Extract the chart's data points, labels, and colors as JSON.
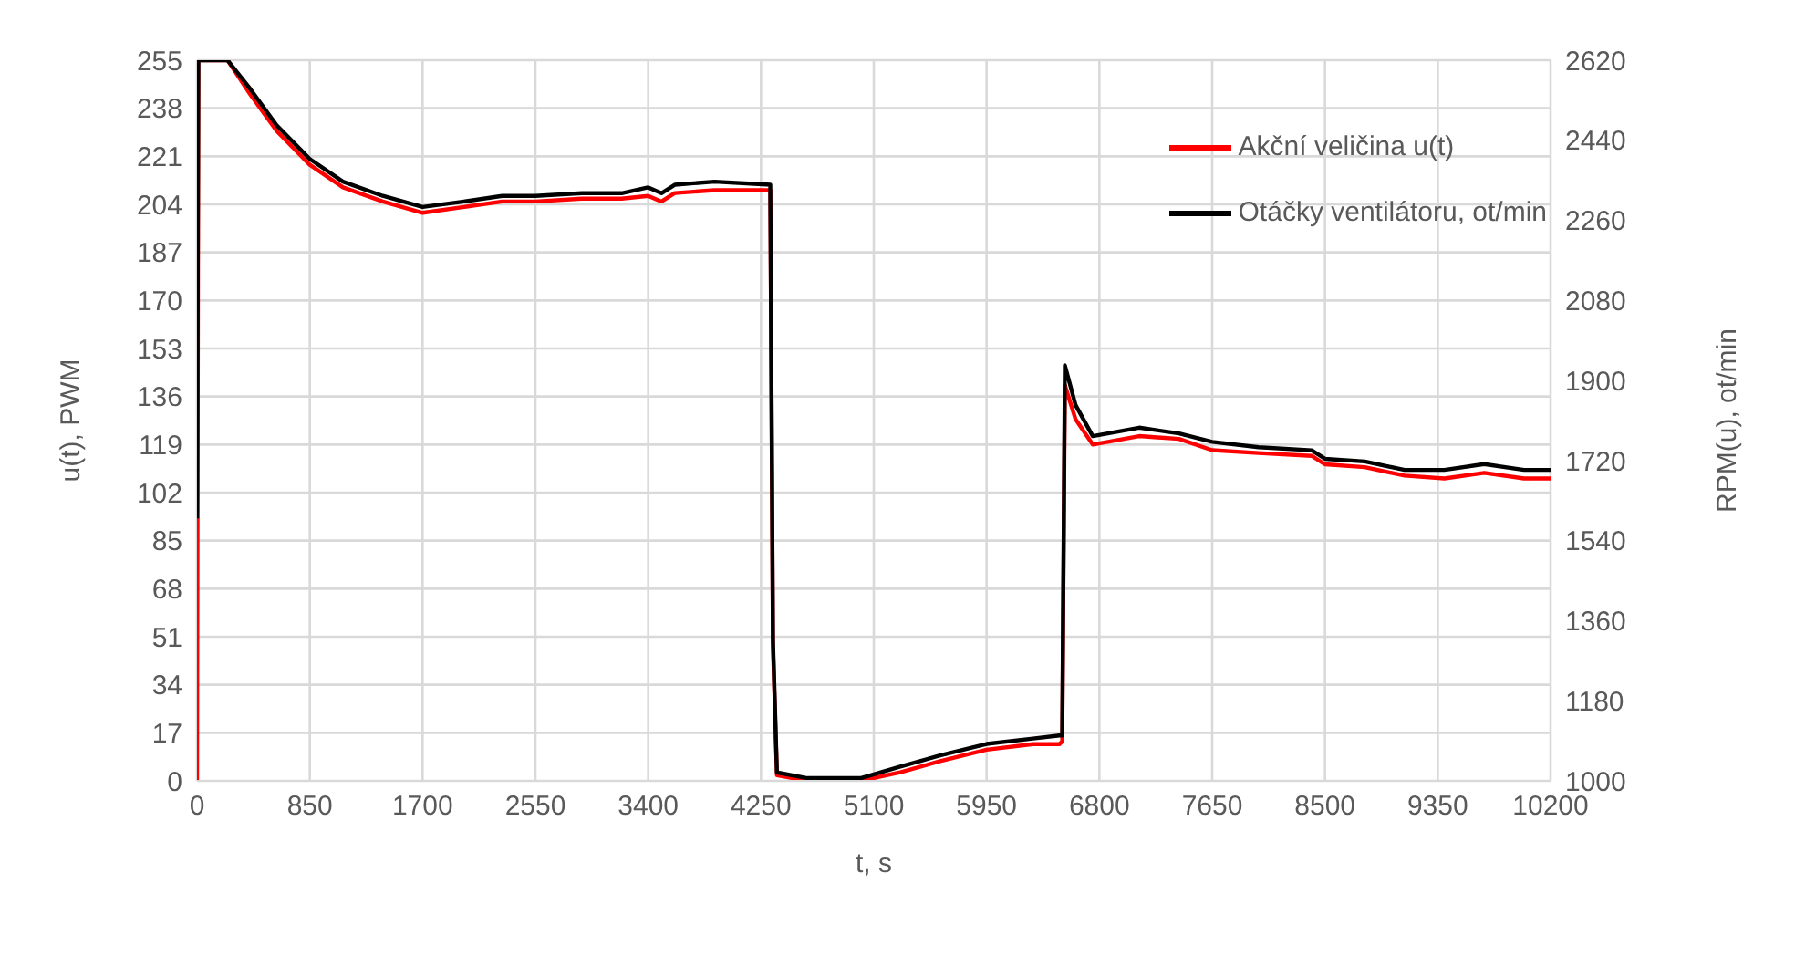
{
  "chart_data": {
    "type": "line",
    "xlabel": "t, s",
    "ylabel": "u(t), PWM",
    "y2label": "RPM(u), ot/min",
    "x": [
      0,
      10,
      230,
      400,
      600,
      850,
      1100,
      1400,
      1700,
      2000,
      2300,
      2550,
      2900,
      3200,
      3400,
      3500,
      3600,
      3900,
      4320,
      4340,
      4370,
      4600,
      5000,
      5300,
      5600,
      5950,
      6300,
      6500,
      6520,
      6540,
      6620,
      6750,
      7100,
      7400,
      7650,
      8000,
      8400,
      8500,
      8800,
      9100,
      9400,
      9700,
      10000,
      10200
    ],
    "series": [
      {
        "name": "Akční veličina u(t)",
        "color": "#ff0000",
        "values": [
          0,
          255,
          255,
          243,
          230,
          218,
          210,
          205,
          201,
          203,
          205,
          205,
          206,
          206,
          207,
          205,
          208,
          209,
          209,
          48,
          2,
          0,
          0,
          3,
          7,
          11,
          13,
          13,
          14,
          140,
          128,
          119,
          122,
          121,
          117,
          116,
          115,
          112,
          111,
          108,
          107,
          109,
          107,
          107
        ]
      },
      {
        "name": "Otáčky ventilátoru, ot/min",
        "color": "#000000",
        "axis": "y2",
        "values": [
          1590,
          2620,
          2620,
          2556,
          2474,
          2398,
          2347,
          2315,
          2290,
          2302,
          2315,
          2315,
          2321,
          2321,
          2334,
          2321,
          2340,
          2347,
          2340,
          1318,
          1019,
          1006,
          1006,
          1032,
          1057,
          1083,
          1095,
          1102,
          1102,
          1934,
          1845,
          1775,
          1794,
          1781,
          1762,
          1750,
          1743,
          1724,
          1718,
          1699,
          1699,
          1712,
          1699,
          1699
        ]
      }
    ],
    "xlim": [
      0,
      10200
    ],
    "xticks": [
      0,
      850,
      1700,
      2550,
      3400,
      4250,
      5100,
      5950,
      6800,
      7650,
      8500,
      9350,
      10200
    ],
    "ylim": [
      0,
      255
    ],
    "yticks": [
      0,
      17,
      34,
      51,
      68,
      85,
      102,
      119,
      136,
      153,
      170,
      187,
      204,
      221,
      238,
      255
    ],
    "y2lim": [
      1000,
      2620
    ],
    "y2ticks": [
      1000,
      1180,
      1360,
      1540,
      1720,
      1900,
      2080,
      2260,
      2440,
      2620
    ],
    "grid": true,
    "legend": "top right",
    "marker": "none",
    "line_style": "solid"
  }
}
